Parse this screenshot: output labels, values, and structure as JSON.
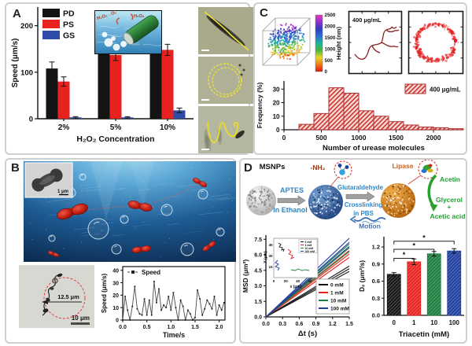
{
  "figure": {
    "bg": "#ffffff",
    "panel_border": "#cfcfcf"
  },
  "panel_a": {
    "label": "A",
    "inset_labels": {
      "left": "H₂O₂→O₂",
      "right": "H₂O₂"
    },
    "micrographs": [
      "straight-trajectory",
      "circular-trajectory",
      "helical-trajectory"
    ]
  },
  "panel_b": {
    "label": "B",
    "tem_scale_label": "1 μm",
    "diameter_label": "12.5 μm",
    "scale_label": "10 μm"
  },
  "panel_c": {
    "label": "C",
    "concentration_label": "400 μg/mL"
  },
  "panel_d": {
    "label": "D",
    "scheme": {
      "msnps": "MSNPs",
      "step1_top": "APTES",
      "step1_bottom": "In Ethanol",
      "nh2": "-NH₂",
      "step2_line1": "Glutaraldehyde",
      "step2_line2": "Crosslinking",
      "step2_line3": "in PBS",
      "lipase": "Lipase",
      "acetin": "Acetin",
      "glycerol": "Glycerol",
      "plus": "+",
      "acetic_acid": "Acetic acid",
      "motion": "Motion"
    }
  },
  "chart_data": [
    {
      "id": "speed_vs_h2o2",
      "type": "bar",
      "categories": [
        "2%",
        "5%",
        "10%"
      ],
      "series": [
        {
          "name": "PD",
          "color": "#141414",
          "values": [
            108,
            150,
            210
          ],
          "errors": [
            14,
            13,
            14
          ]
        },
        {
          "name": "PS",
          "color": "#e8231f",
          "values": [
            80,
            137,
            148
          ],
          "errors": [
            10,
            12,
            12
          ]
        },
        {
          "name": "GS",
          "color": "#2f4da8",
          "values": [
            3,
            3,
            18
          ],
          "errors": [
            1.5,
            1.5,
            5
          ]
        }
      ],
      "xlabel": "H₂O₂ Concentration",
      "ylabel": "Speed (μm/s)",
      "ylim": [
        0,
        240
      ],
      "yticks": [
        0,
        100,
        200
      ],
      "legend_position": "top-left",
      "grid": false
    },
    {
      "id": "speed_vs_time",
      "type": "line",
      "legend": "Speed",
      "x_step": 0.05,
      "values": [
        0,
        19,
        8,
        0,
        11,
        27,
        9,
        5,
        4,
        17,
        4,
        16,
        4,
        31,
        14,
        25,
        8,
        12,
        10,
        19,
        8,
        22,
        10,
        0,
        16,
        11,
        0,
        8,
        5,
        0,
        2,
        24,
        17,
        4,
        9,
        16,
        13,
        9,
        19,
        4,
        12,
        8,
        14
      ],
      "xlabel": "Time/s",
      "ylabel": "Speed (μm/s)",
      "xlim": [
        0,
        2.12
      ],
      "ylim": [
        0,
        43
      ],
      "xticks": [
        0.0,
        0.5,
        1.0,
        1.5,
        2.0
      ],
      "yticks": [
        0,
        10,
        20,
        30,
        40
      ],
      "grid": false
    },
    {
      "id": "urease_histogram",
      "type": "bar",
      "legend": "400 μg/mL",
      "bin_width": 200,
      "bin_centers": [
        300,
        500,
        700,
        900,
        1100,
        1300,
        1500,
        1700,
        1900,
        2100,
        2300
      ],
      "values": [
        4,
        12,
        31,
        27,
        14,
        10,
        6,
        3.5,
        2,
        1.5,
        0.8
      ],
      "xlabel": "Number of urease molecules",
      "ylabel": "Frequency (%)",
      "xlim": [
        0,
        2400
      ],
      "ylim": [
        0,
        36
      ],
      "xticks": [
        0,
        500,
        1000,
        1500,
        2000
      ],
      "yticks": [
        0,
        10,
        20,
        30
      ],
      "bar_fill": "#f6d9d4",
      "bar_hatch": "#cc2a25",
      "legend_position": "top-right",
      "grid": false
    },
    {
      "id": "height_colorbar",
      "type": "heatmap",
      "label": "Height (nm)",
      "ticks": [
        0,
        500,
        1000,
        1500,
        2000,
        2500
      ],
      "stops": [
        "#e01616",
        "#f07818",
        "#ecd722",
        "#47b53a",
        "#19b5a0",
        "#2b6fd8",
        "#2b3fbf",
        "#8f2fd0",
        "#e63bb4"
      ]
    },
    {
      "id": "msd_vs_dt",
      "type": "line",
      "series": [
        {
          "name": "0 mM",
          "color": "#141414",
          "slope": 3.1
        },
        {
          "name": "1 mM",
          "color": "#e8231f",
          "slope": 4.05
        },
        {
          "name": "10 mM",
          "color": "#1b7e3e",
          "slope": 4.45
        },
        {
          "name": "100 mM",
          "color": "#1f3f9e",
          "slope": 4.8
        }
      ],
      "xlabel": "Δt (s)",
      "ylabel": "MSD (μm²)",
      "xlim": [
        0,
        1.5
      ],
      "ylim": [
        0,
        7.9
      ],
      "xticks": [
        0.0,
        0.3,
        0.6,
        0.9,
        1.2,
        1.5
      ],
      "yticks": [
        0.0,
        1.5,
        3.0,
        4.5,
        6.0,
        7.5
      ],
      "legend_position": "bottom-right",
      "inset": {
        "xlabel": "x (μm)",
        "ylabel": "Y (μm)",
        "xticks": [
          0,
          20,
          40,
          60
        ],
        "yticks": [
          15,
          30,
          45
        ]
      },
      "grid": false
    },
    {
      "id": "de_vs_triacetin",
      "type": "bar",
      "categories": [
        "0",
        "1",
        "10",
        "100"
      ],
      "values": [
        0.72,
        0.94,
        1.08,
        1.13
      ],
      "errors": [
        0.03,
        0.05,
        0.04,
        0.04
      ],
      "colors": [
        "#141414",
        "#e8231f",
        "#1b7e3e",
        "#1f3f9e"
      ],
      "xlabel": "Triacetin (mM)",
      "ylabel": "Dₑ (μm²/s)",
      "ylim": [
        0,
        1.38
      ],
      "yticks": [
        0.0,
        0.3,
        0.6,
        0.9,
        1.2
      ],
      "significance": [
        {
          "from": 0,
          "to": 1,
          "label": "*",
          "height": 1.0
        },
        {
          "from": 0,
          "to": 2,
          "label": "*",
          "height": 1.16
        },
        {
          "from": 0,
          "to": 3,
          "label": "*",
          "height": 1.3
        }
      ],
      "grid": false
    }
  ]
}
